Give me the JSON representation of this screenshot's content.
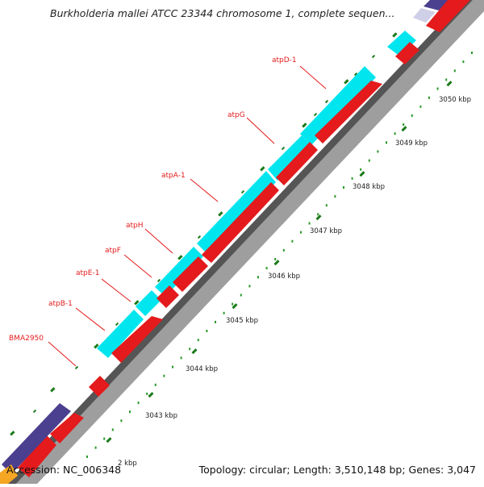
{
  "title": "Burkholderia mallei ATCC 23344 chromosome 1, complete sequen...",
  "footer": {
    "accession": "Accession: NC_006348",
    "stats": "Topology: circular; Length: 3,510,148 bp; Genes: 3,047"
  },
  "scale_labels": [
    "2 kbp",
    "3043 kbp",
    "3044 kbp",
    "3045 kbp",
    "3046 kbp",
    "3047 kbp",
    "3048 kbp",
    "3049 kbp",
    "3050 kbp"
  ],
  "gene_labels": [
    "BMA2950",
    "atpB-1",
    "atpE-1",
    "atpF",
    "atpH",
    "atpA-1",
    "atpG",
    "atpD-1"
  ],
  "colors": {
    "cds": "#e41a1c",
    "rna": "#00e5ee",
    "other": "#4b3f8f",
    "backbone": "#999999",
    "tick_major": "#1a7a1a",
    "tick_minor": "#2a9a2a",
    "label": "#e41a1c"
  }
}
